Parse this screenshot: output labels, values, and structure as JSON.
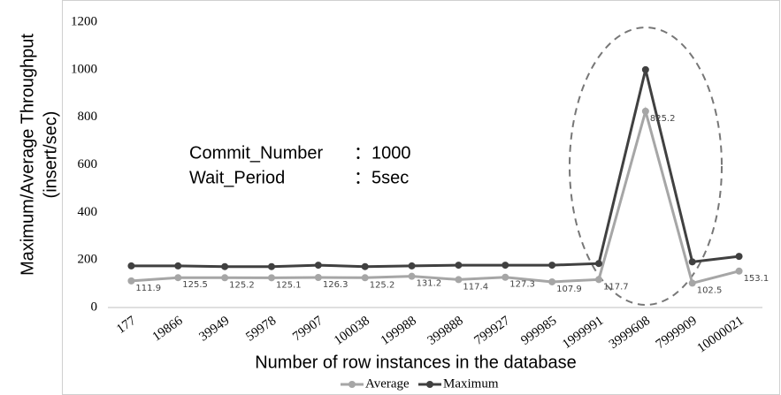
{
  "chart_data": {
    "type": "line",
    "ylabel": [
      "Maximum/Average Throughput",
      "(insert/sec)"
    ],
    "xlabel": "Number of row instances in the database",
    "annotations": [
      [
        "Commit_Number",
        "：1000"
      ],
      [
        "Wait_Period",
        "：5sec"
      ]
    ],
    "categories": [
      "177",
      "19866",
      "39949",
      "59978",
      "79907",
      "100038",
      "199988",
      "399888",
      "799927",
      "999985",
      "1999991",
      "3999608",
      "7999909",
      "10000021"
    ],
    "series": [
      {
        "name": "Average",
        "color": "#a6a6a6",
        "values": [
          111.9,
          125.5,
          125.2,
          125.1,
          126.3,
          125.2,
          131.2,
          117.4,
          127.3,
          107.9,
          117.7,
          825.2,
          102.5,
          153.1
        ]
      },
      {
        "name": "Maximum",
        "color": "#404040",
        "values": [
          175,
          175,
          172,
          172,
          178,
          172,
          175,
          178,
          178,
          178,
          185,
          1000,
          192,
          215
        ]
      }
    ],
    "ylim": [
      0,
      1200
    ],
    "yticks": [
      0,
      200,
      400,
      600,
      800,
      1000,
      1200
    ],
    "legend": "bottom"
  }
}
